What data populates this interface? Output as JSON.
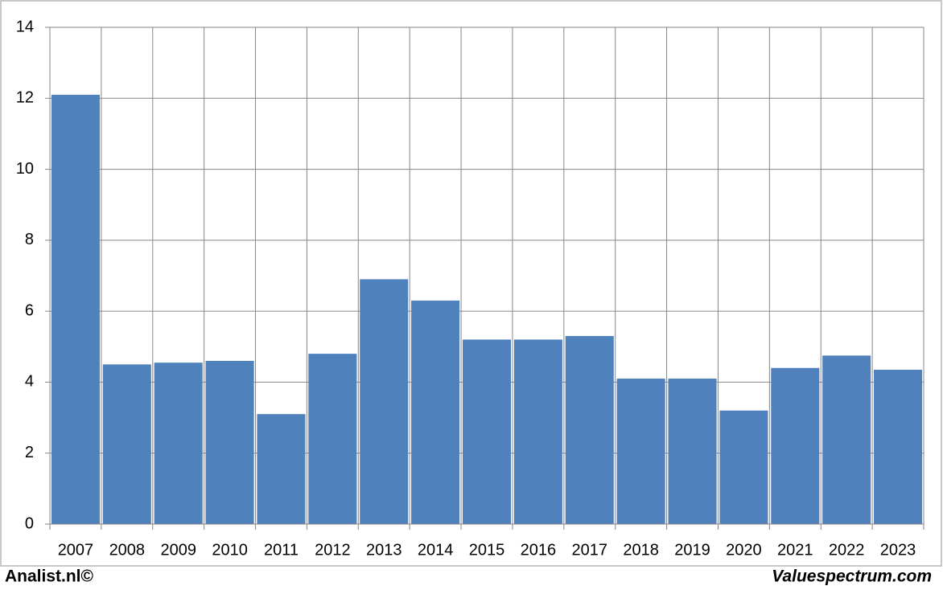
{
  "chart_data": {
    "type": "bar",
    "categories": [
      "2007",
      "2008",
      "2009",
      "2010",
      "2011",
      "2012",
      "2013",
      "2014",
      "2015",
      "2016",
      "2017",
      "2018",
      "2019",
      "2020",
      "2021",
      "2022",
      "2023"
    ],
    "values": [
      12.1,
      4.5,
      4.55,
      4.6,
      3.1,
      4.8,
      6.9,
      6.3,
      5.2,
      5.2,
      5.3,
      4.1,
      4.1,
      3.2,
      4.4,
      4.75,
      4.35
    ],
    "color": "#4f81bd",
    "ylim": [
      0,
      14
    ],
    "yticks": [
      0,
      2,
      4,
      6,
      8,
      10,
      12,
      14
    ],
    "grid": true
  },
  "credits": {
    "left": "Analist.nl©",
    "right": "Valuespectrum.com"
  }
}
